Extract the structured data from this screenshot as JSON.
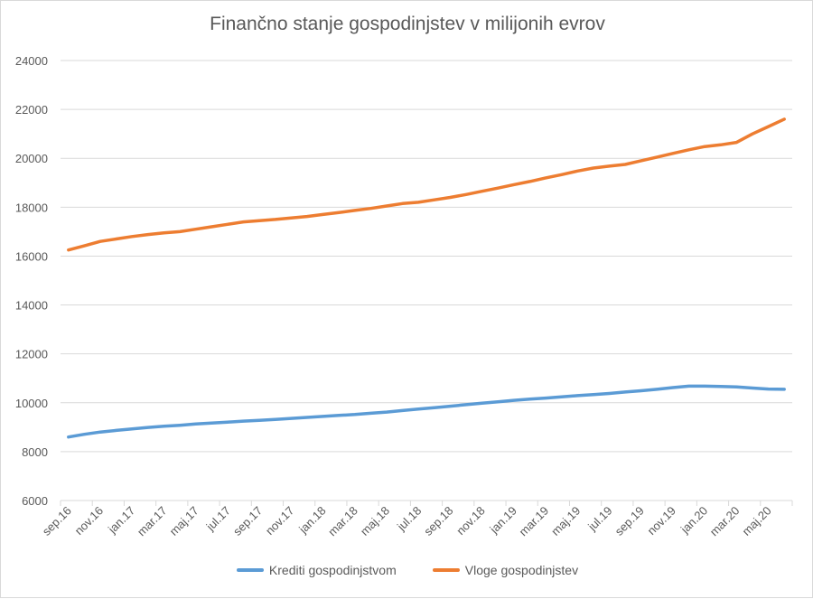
{
  "chart_data": {
    "type": "line",
    "title": "Finančno stanje gospodinjstev v milijonih evrov",
    "x": [
      "sep.16",
      "okt.16",
      "nov.16",
      "dec.16",
      "jan.17",
      "feb.17",
      "mar.17",
      "apr.17",
      "maj.17",
      "jun.17",
      "jul.17",
      "avg.17",
      "sep.17",
      "okt.17",
      "nov.17",
      "dec.17",
      "jan.18",
      "feb.18",
      "mar.18",
      "apr.18",
      "maj.18",
      "jun.18",
      "jul.18",
      "avg.18",
      "sep.18",
      "okt.18",
      "nov.18",
      "dec.18",
      "jan.19",
      "feb.19",
      "mar.19",
      "apr.19",
      "maj.19",
      "jun.19",
      "jul.19",
      "avg.19",
      "sep.19",
      "okt.19",
      "nov.19",
      "dec.19",
      "jan.20",
      "feb.20",
      "mar.20",
      "apr.20",
      "maj.20",
      "jun.20"
    ],
    "x_tick_labels": [
      "sep.16",
      "nov.16",
      "jan.17",
      "mar.17",
      "maj.17",
      "jul.17",
      "sep.17",
      "nov.17",
      "jan.18",
      "mar.18",
      "maj.18",
      "jul.18",
      "sep.18",
      "nov.18",
      "jan.19",
      "mar.19",
      "maj.19",
      "jul.19",
      "sep.19",
      "nov.19",
      "jan.20",
      "mar.20",
      "maj.20"
    ],
    "series": [
      {
        "name": "Krediti gospodinjstvom",
        "color": "#5b9bd5",
        "values": [
          8600,
          8710,
          8800,
          8870,
          8930,
          8990,
          9040,
          9080,
          9130,
          9170,
          9210,
          9250,
          9280,
          9320,
          9360,
          9400,
          9440,
          9480,
          9520,
          9570,
          9620,
          9680,
          9740,
          9800,
          9860,
          9920,
          9980,
          10040,
          10100,
          10150,
          10190,
          10240,
          10290,
          10330,
          10380,
          10440,
          10490,
          10550,
          10620,
          10680,
          10680,
          10670,
          10650,
          10600,
          10560,
          10550
        ]
      },
      {
        "name": "Vloge gospodinjstev",
        "color": "#ed7d31",
        "values": [
          16250,
          16420,
          16600,
          16700,
          16800,
          16880,
          16950,
          17000,
          17100,
          17200,
          17300,
          17400,
          17450,
          17500,
          17560,
          17620,
          17700,
          17780,
          17870,
          17950,
          18050,
          18150,
          18200,
          18300,
          18400,
          18520,
          18650,
          18780,
          18920,
          19050,
          19200,
          19330,
          19480,
          19600,
          19680,
          19750,
          19900,
          20050,
          20200,
          20350,
          20480,
          20550,
          20650,
          21000,
          21300,
          21600
        ]
      }
    ],
    "yticks": [
      "6000",
      "8000",
      "10000",
      "12000",
      "14000",
      "16000",
      "18000",
      "20000",
      "22000",
      "24000"
    ],
    "ylim": [
      6000,
      24000
    ],
    "grid": true,
    "legend_position": "bottom"
  }
}
